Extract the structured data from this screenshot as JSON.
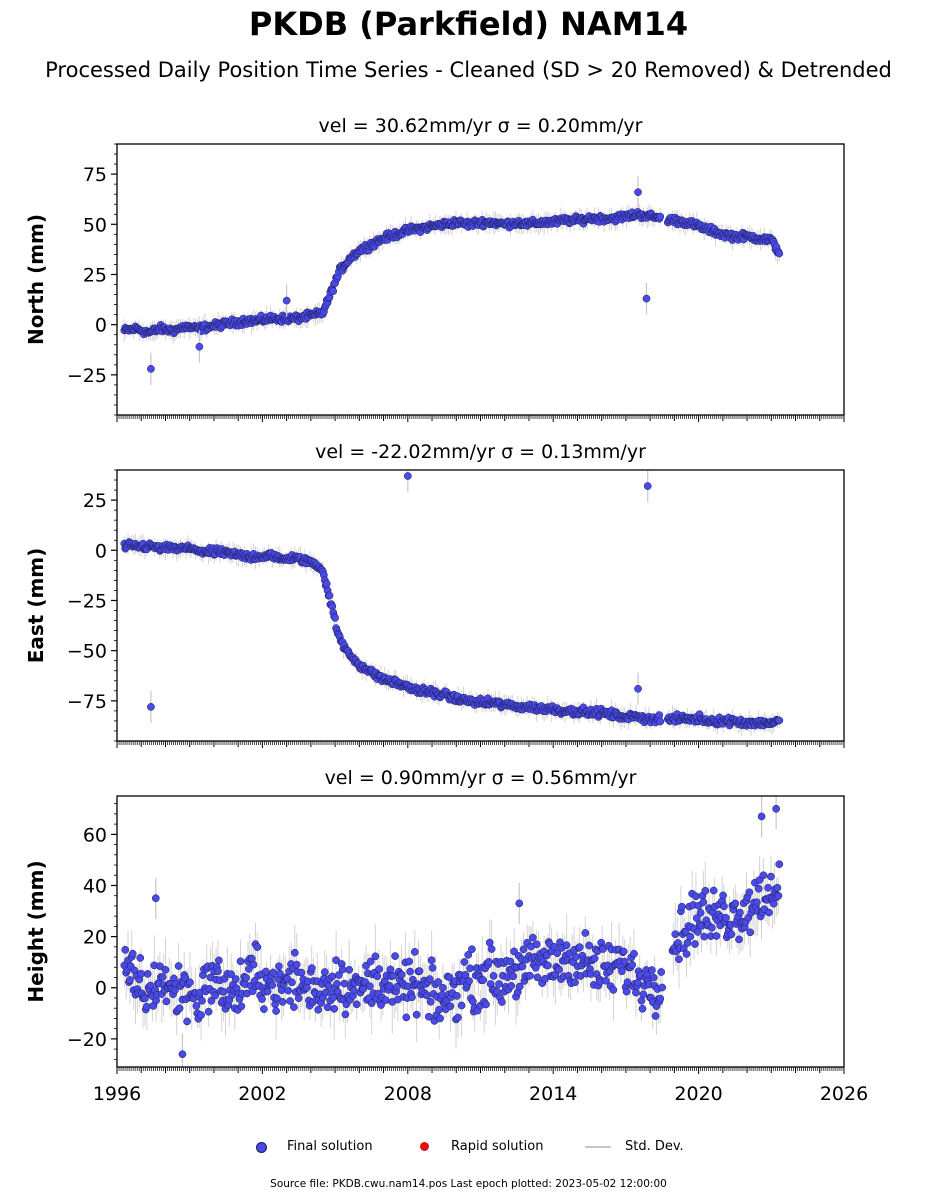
{
  "figure": {
    "title": "PKDB (Parkfield) NAM14",
    "subtitle": "Processed Daily Position Time Series - Cleaned (SD > 20 Removed) & Detrended",
    "source_note": "Source file: PKDB.cwu.nam14.pos  Last epoch plotted: 2023-05-02 12:00:00"
  },
  "legend": {
    "final": "Final solution",
    "rapid": "Rapid solution",
    "std": "Std. Dev."
  },
  "colors": {
    "final": "#4a4ae8",
    "final_edge": "#1a1a50",
    "rapid": "#dd1111",
    "std": "#c8c8c8"
  },
  "chart_data": [
    {
      "type": "scatter",
      "title": "vel = 30.62mm/yr   σ = 0.20mm/yr",
      "ylabel": "North (mm)",
      "xlim": [
        1996,
        2026
      ],
      "ylim": [
        -45,
        90
      ],
      "yticks": [
        -25,
        0,
        25,
        50,
        75
      ],
      "series": [
        {
          "name": "Final solution",
          "x": [
            1996.3,
            1996.8,
            1997.3,
            1997.8,
            1998.3,
            1998.8,
            1999.3,
            1999.8,
            2000.3,
            2000.8,
            2001.3,
            2001.8,
            2002.3,
            2002.8,
            2003.3,
            2003.8,
            2004.2,
            2004.5,
            2004.8,
            2005.2,
            2005.6,
            2006.0,
            2006.5,
            2007.0,
            2007.5,
            2008.0,
            2008.5,
            2009.0,
            2009.5,
            2010.0,
            2010.5,
            2011.0,
            2011.5,
            2012.0,
            2012.5,
            2013.0,
            2013.5,
            2014.0,
            2014.5,
            2015.0,
            2015.5,
            2016.0,
            2016.5,
            2017.0,
            2017.5,
            2018.0,
            2018.4,
            2019.0,
            2019.5,
            2020.0,
            2020.5,
            2021.0,
            2021.5,
            2022.0,
            2022.5,
            2023.0,
            2023.33
          ],
          "y": [
            -3,
            -2,
            -4,
            -2,
            -3,
            -1,
            -2,
            -1,
            0,
            1,
            2,
            2,
            3,
            3,
            3,
            4,
            5,
            6,
            15,
            27,
            33,
            37,
            40,
            43,
            45,
            47,
            48,
            49,
            50,
            51,
            50,
            51,
            51,
            50,
            51,
            50,
            51,
            51,
            52,
            52,
            53,
            53,
            53,
            54,
            55,
            54,
            53,
            52,
            51,
            49,
            47,
            45,
            44,
            44,
            43,
            42,
            36
          ]
        }
      ],
      "outliers": {
        "x": [
          1997.4,
          1999.4,
          2003.0,
          2017.5,
          2017.85
        ],
        "y": [
          -22,
          -11,
          12,
          66,
          13
        ]
      }
    },
    {
      "type": "scatter",
      "title": "vel = -22.02mm/yr   σ = 0.13mm/yr",
      "ylabel": "East (mm)",
      "xlim": [
        1996,
        2026
      ],
      "ylim": [
        -95,
        40
      ],
      "yticks": [
        -75,
        -50,
        -25,
        0,
        25
      ],
      "series": [
        {
          "name": "Final solution",
          "x": [
            1996.3,
            1996.8,
            1997.3,
            1997.8,
            1998.3,
            1998.8,
            1999.3,
            1999.8,
            2000.3,
            2000.8,
            2001.3,
            2001.8,
            2002.3,
            2002.8,
            2003.3,
            2003.8,
            2004.2,
            2004.5,
            2004.8,
            2005.2,
            2005.6,
            2006.0,
            2006.5,
            2007.0,
            2007.5,
            2008.0,
            2008.5,
            2009.0,
            2009.5,
            2010.0,
            2010.5,
            2011.0,
            2011.5,
            2012.0,
            2012.5,
            2013.0,
            2013.5,
            2014.0,
            2014.5,
            2015.0,
            2015.5,
            2016.0,
            2016.5,
            2017.0,
            2017.5,
            2018.0,
            2018.4,
            2019.0,
            2019.5,
            2020.0,
            2020.5,
            2021.0,
            2021.5,
            2022.0,
            2022.5,
            2023.0,
            2023.33
          ],
          "y": [
            2,
            2,
            2,
            1,
            1,
            1,
            0,
            -1,
            -1,
            -2,
            -3,
            -3,
            -3,
            -4,
            -4,
            -5,
            -7,
            -10,
            -25,
            -45,
            -52,
            -57,
            -61,
            -64,
            -66,
            -68,
            -70,
            -71,
            -72,
            -74,
            -75,
            -76,
            -76,
            -77,
            -78,
            -78,
            -79,
            -79,
            -80,
            -80,
            -81,
            -81,
            -82,
            -83,
            -83,
            -84,
            -84,
            -84,
            -84,
            -84,
            -85,
            -85,
            -85,
            -86,
            -86,
            -86,
            -85
          ]
        }
      ],
      "outliers": {
        "x": [
          1997.4,
          2008.0,
          2017.9,
          2017.5
        ],
        "y": [
          -78,
          37,
          32,
          -69
        ]
      }
    },
    {
      "type": "scatter",
      "title": "vel = 0.90mm/yr   σ = 0.56mm/yr",
      "ylabel": "Height (mm)",
      "xlabel": "",
      "xlim": [
        1996,
        2026
      ],
      "ylim": [
        -31,
        75
      ],
      "yticks": [
        -20,
        0,
        20,
        40,
        60
      ],
      "xticks": [
        1996,
        2002,
        2008,
        2014,
        2020,
        2026
      ],
      "series": [
        {
          "name": "Final solution",
          "x": [
            1996.3,
            1996.8,
            1997.3,
            1997.8,
            1998.3,
            1998.8,
            1999.3,
            1999.8,
            2000.3,
            2000.8,
            2001.3,
            2001.8,
            2002.3,
            2002.8,
            2003.3,
            2003.8,
            2004.3,
            2004.8,
            2005.3,
            2005.8,
            2006.3,
            2006.8,
            2007.3,
            2007.8,
            2008.3,
            2008.8,
            2009.3,
            2009.8,
            2010.3,
            2010.8,
            2011.3,
            2011.8,
            2012.3,
            2012.8,
            2013.3,
            2013.8,
            2014.3,
            2014.8,
            2015.3,
            2015.8,
            2016.3,
            2016.8,
            2017.3,
            2017.8,
            2018.4,
            2019.0,
            2019.5,
            2020.0,
            2020.5,
            2021.0,
            2021.5,
            2022.0,
            2022.5,
            2023.0,
            2023.33
          ],
          "y": [
            5,
            2,
            -3,
            4,
            -2,
            0,
            -5,
            3,
            1,
            -3,
            2,
            5,
            2,
            -1,
            4,
            0,
            -1,
            2,
            3,
            -2,
            1,
            4,
            0,
            -1,
            2,
            -3,
            -5,
            -3,
            4,
            2,
            6,
            3,
            8,
            6,
            10,
            9,
            11,
            12,
            10,
            8,
            7,
            9,
            5,
            2,
            3,
            18,
            24,
            30,
            26,
            29,
            28,
            32,
            35,
            38,
            42
          ]
        }
      ],
      "outliers": {
        "x": [
          1997.6,
          1998.7,
          2012.6,
          2022.6,
          2023.2
        ],
        "y": [
          35,
          -26,
          33,
          67,
          70
        ]
      }
    }
  ]
}
